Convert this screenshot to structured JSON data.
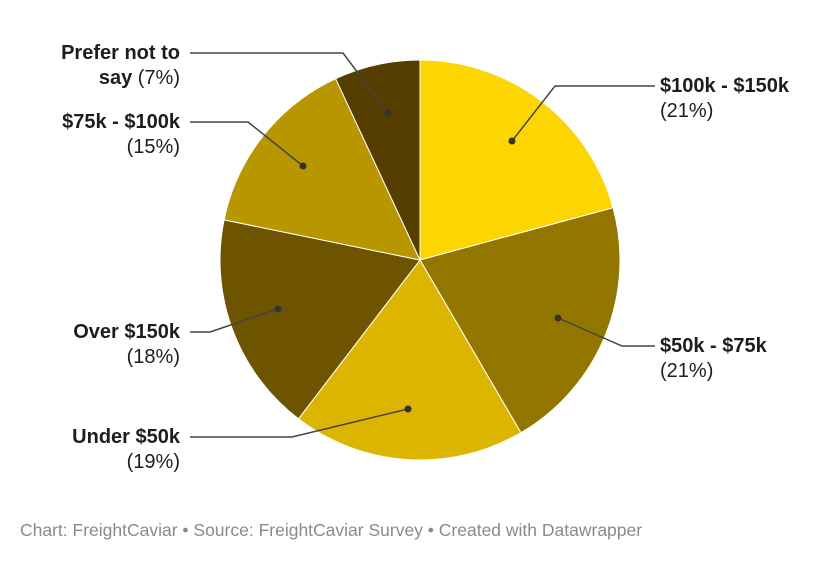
{
  "chart_data": {
    "type": "pie",
    "title": "",
    "slices": [
      {
        "label": "$100k - $150k",
        "value": 21,
        "pct_text": "(21%)",
        "color": "#FDD500"
      },
      {
        "label": "$50k - $75k",
        "value": 21,
        "pct_text": "(21%)",
        "color": "#927600"
      },
      {
        "label": "Under $50k",
        "value": 19,
        "pct_text": "(19%)",
        "color": "#DCB500"
      },
      {
        "label": "Over $150k",
        "value": 18,
        "pct_text": "(18%)",
        "color": "#6E5400"
      },
      {
        "label": "$75k - $100k",
        "value": 15,
        "pct_text": "(15%)",
        "color": "#B89600"
      },
      {
        "label": "Prefer not to say",
        "label_line1": "Prefer not to",
        "label_line2": "say",
        "value": 7,
        "pct_text": "(7%)",
        "color": "#563D00"
      }
    ],
    "start": "top",
    "direction": "clockwise"
  },
  "footer": {
    "text": "Chart: FreightCaviar • Source: FreightCaviar Survey • Created with Datawrapper"
  }
}
